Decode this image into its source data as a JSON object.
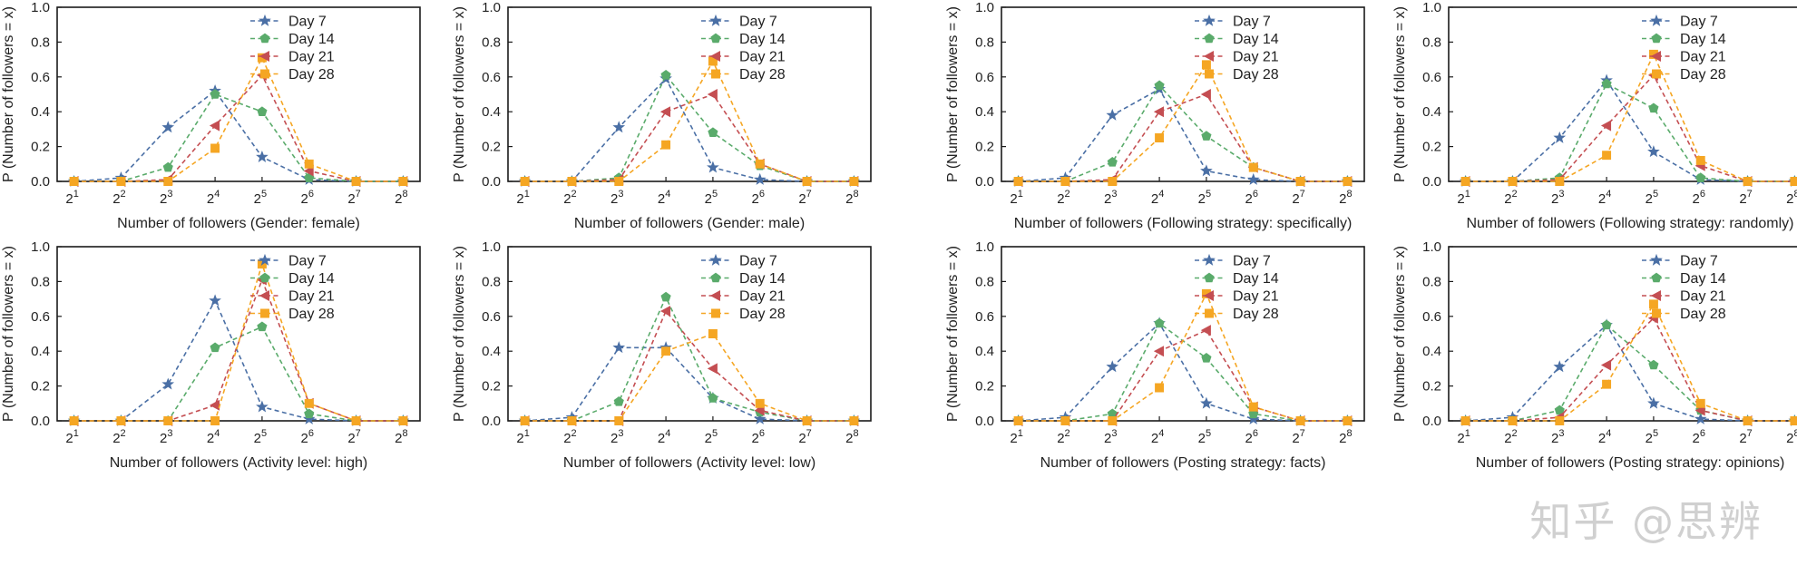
{
  "watermark": "知乎 @思辨",
  "chart_data": [
    {
      "type": "line",
      "x": [
        "2^1",
        "2^2",
        "2^3",
        "2^4",
        "2^5",
        "2^6",
        "2^7",
        "2^8"
      ],
      "xlabel": "Number of followers (Gender: female)",
      "ylabel": "P (Number of followers = x)",
      "ylim": [
        0,
        1.0
      ],
      "yticks": [
        "0.0",
        "0.2",
        "0.4",
        "0.6",
        "0.8",
        "1.0"
      ],
      "legend_position": "top-right",
      "series": [
        {
          "name": "Day 7",
          "color": "#4a6fa5",
          "marker": "star",
          "values": [
            0.0,
            0.02,
            0.31,
            0.52,
            0.14,
            0.01,
            0.0,
            0.0
          ]
        },
        {
          "name": "Day 14",
          "color": "#5aab6b",
          "marker": "pentagon",
          "values": [
            0.0,
            0.0,
            0.08,
            0.5,
            0.4,
            0.02,
            0.0,
            0.0
          ]
        },
        {
          "name": "Day 21",
          "color": "#c44e52",
          "marker": "triangle-left",
          "values": [
            0.0,
            0.0,
            0.01,
            0.32,
            0.61,
            0.06,
            0.0,
            0.0
          ]
        },
        {
          "name": "Day 28",
          "color": "#f5a623",
          "marker": "square",
          "values": [
            0.0,
            0.0,
            0.0,
            0.19,
            0.71,
            0.1,
            0.0,
            0.0
          ]
        }
      ]
    },
    {
      "type": "line",
      "x": [
        "2^1",
        "2^2",
        "2^3",
        "2^4",
        "2^5",
        "2^6",
        "2^7",
        "2^8"
      ],
      "xlabel": "Number of followers (Gender: male)",
      "ylabel": "P (Number of followers = x)",
      "ylim": [
        0,
        1.0
      ],
      "yticks": [
        "0.0",
        "0.2",
        "0.4",
        "0.6",
        "0.8",
        "1.0"
      ],
      "legend_position": "top-right",
      "series": [
        {
          "name": "Day 7",
          "color": "#4a6fa5",
          "marker": "star",
          "values": [
            0.0,
            0.0,
            0.31,
            0.59,
            0.08,
            0.01,
            0.0,
            0.0
          ]
        },
        {
          "name": "Day 14",
          "color": "#5aab6b",
          "marker": "pentagon",
          "values": [
            0.0,
            0.0,
            0.02,
            0.61,
            0.28,
            0.09,
            0.0,
            0.0
          ]
        },
        {
          "name": "Day 21",
          "color": "#c44e52",
          "marker": "triangle-left",
          "values": [
            0.0,
            0.0,
            0.01,
            0.4,
            0.5,
            0.1,
            0.0,
            0.0
          ]
        },
        {
          "name": "Day 28",
          "color": "#f5a623",
          "marker": "square",
          "values": [
            0.0,
            0.0,
            0.0,
            0.21,
            0.69,
            0.1,
            0.0,
            0.0
          ]
        }
      ]
    },
    {
      "type": "line",
      "x": [
        "2^1",
        "2^2",
        "2^3",
        "2^4",
        "2^5",
        "2^6",
        "2^7",
        "2^8"
      ],
      "xlabel": "Number of followers (Following strategy: specifically)",
      "ylabel": "P (Number of followers = x)",
      "ylim": [
        0,
        1.0
      ],
      "yticks": [
        "0.0",
        "0.2",
        "0.4",
        "0.6",
        "0.8",
        "1.0"
      ],
      "legend_position": "top-right",
      "series": [
        {
          "name": "Day 7",
          "color": "#4a6fa5",
          "marker": "star",
          "values": [
            0.0,
            0.02,
            0.38,
            0.53,
            0.06,
            0.01,
            0.0,
            0.0
          ]
        },
        {
          "name": "Day 14",
          "color": "#5aab6b",
          "marker": "pentagon",
          "values": [
            0.0,
            0.0,
            0.11,
            0.55,
            0.26,
            0.08,
            0.0,
            0.0
          ]
        },
        {
          "name": "Day 21",
          "color": "#c44e52",
          "marker": "triangle-left",
          "values": [
            0.0,
            0.0,
            0.01,
            0.4,
            0.5,
            0.08,
            0.0,
            0.0
          ]
        },
        {
          "name": "Day 28",
          "color": "#f5a623",
          "marker": "square",
          "values": [
            0.0,
            0.0,
            0.0,
            0.25,
            0.67,
            0.08,
            0.0,
            0.0
          ]
        }
      ]
    },
    {
      "type": "line",
      "x": [
        "2^1",
        "2^2",
        "2^3",
        "2^4",
        "2^5",
        "2^6",
        "2^7",
        "2^8"
      ],
      "xlabel": "Number of followers (Following strategy: randomly)",
      "ylabel": "P (Number of followers = x)",
      "ylim": [
        0,
        1.0
      ],
      "yticks": [
        "0.0",
        "0.2",
        "0.4",
        "0.6",
        "0.8",
        "1.0"
      ],
      "legend_position": "top-right",
      "series": [
        {
          "name": "Day 7",
          "color": "#4a6fa5",
          "marker": "star",
          "values": [
            0.0,
            0.0,
            0.25,
            0.58,
            0.17,
            0.01,
            0.0,
            0.0
          ]
        },
        {
          "name": "Day 14",
          "color": "#5aab6b",
          "marker": "pentagon",
          "values": [
            0.0,
            0.0,
            0.02,
            0.56,
            0.42,
            0.02,
            0.0,
            0.0
          ]
        },
        {
          "name": "Day 21",
          "color": "#c44e52",
          "marker": "triangle-left",
          "values": [
            0.0,
            0.0,
            0.01,
            0.32,
            0.61,
            0.09,
            0.0,
            0.0
          ]
        },
        {
          "name": "Day 28",
          "color": "#f5a623",
          "marker": "square",
          "values": [
            0.0,
            0.0,
            0.0,
            0.15,
            0.73,
            0.12,
            0.0,
            0.0
          ]
        }
      ]
    },
    {
      "type": "line",
      "x": [
        "2^1",
        "2^2",
        "2^3",
        "2^4",
        "2^5",
        "2^6",
        "2^7",
        "2^8"
      ],
      "xlabel": "Number of followers (Activity level: high)",
      "ylabel": "P (Number of followers = x)",
      "ylim": [
        0,
        1.0
      ],
      "yticks": [
        "0.0",
        "0.2",
        "0.4",
        "0.6",
        "0.8",
        "1.0"
      ],
      "legend_position": "top-right",
      "series": [
        {
          "name": "Day 7",
          "color": "#4a6fa5",
          "marker": "star",
          "values": [
            0.0,
            0.0,
            0.21,
            0.69,
            0.08,
            0.01,
            0.0,
            0.0
          ]
        },
        {
          "name": "Day 14",
          "color": "#5aab6b",
          "marker": "pentagon",
          "values": [
            0.0,
            0.0,
            0.0,
            0.42,
            0.54,
            0.04,
            0.0,
            0.0
          ]
        },
        {
          "name": "Day 21",
          "color": "#c44e52",
          "marker": "triangle-left",
          "values": [
            0.0,
            0.0,
            0.0,
            0.09,
            0.81,
            0.1,
            0.0,
            0.0
          ]
        },
        {
          "name": "Day 28",
          "color": "#f5a623",
          "marker": "square",
          "values": [
            0.0,
            0.0,
            0.0,
            0.0,
            0.9,
            0.1,
            0.0,
            0.0
          ]
        }
      ]
    },
    {
      "type": "line",
      "x": [
        "2^1",
        "2^2",
        "2^3",
        "2^4",
        "2^5",
        "2^6",
        "2^7",
        "2^8"
      ],
      "xlabel": "Number of followers (Activity level: low)",
      "ylabel": "P (Number of followers = x)",
      "ylim": [
        0,
        1.0
      ],
      "yticks": [
        "0.0",
        "0.2",
        "0.4",
        "0.6",
        "0.8",
        "1.0"
      ],
      "legend_position": "top-right",
      "series": [
        {
          "name": "Day 7",
          "color": "#4a6fa5",
          "marker": "star",
          "values": [
            0.0,
            0.02,
            0.42,
            0.42,
            0.13,
            0.01,
            0.0,
            0.0
          ]
        },
        {
          "name": "Day 14",
          "color": "#5aab6b",
          "marker": "pentagon",
          "values": [
            0.0,
            0.0,
            0.11,
            0.71,
            0.13,
            0.05,
            0.0,
            0.0
          ]
        },
        {
          "name": "Day 21",
          "color": "#c44e52",
          "marker": "triangle-left",
          "values": [
            0.0,
            0.0,
            0.0,
            0.63,
            0.3,
            0.06,
            0.0,
            0.0
          ]
        },
        {
          "name": "Day 28",
          "color": "#f5a623",
          "marker": "square",
          "values": [
            0.0,
            0.0,
            0.0,
            0.4,
            0.5,
            0.1,
            0.0,
            0.0
          ]
        }
      ]
    },
    {
      "type": "line",
      "x": [
        "2^1",
        "2^2",
        "2^3",
        "2^4",
        "2^5",
        "2^6",
        "2^7",
        "2^8"
      ],
      "xlabel": "Number of followers (Posting strategy: facts)",
      "ylabel": "P (Number of followers = x)",
      "ylim": [
        0,
        1.0
      ],
      "yticks": [
        "0.0",
        "0.2",
        "0.4",
        "0.6",
        "0.8",
        "1.0"
      ],
      "legend_position": "top-right",
      "series": [
        {
          "name": "Day 7",
          "color": "#4a6fa5",
          "marker": "star",
          "values": [
            0.0,
            0.02,
            0.31,
            0.56,
            0.1,
            0.01,
            0.0,
            0.0
          ]
        },
        {
          "name": "Day 14",
          "color": "#5aab6b",
          "marker": "pentagon",
          "values": [
            0.0,
            0.0,
            0.04,
            0.56,
            0.36,
            0.04,
            0.0,
            0.0
          ]
        },
        {
          "name": "Day 21",
          "color": "#c44e52",
          "marker": "triangle-left",
          "values": [
            0.0,
            0.0,
            0.0,
            0.4,
            0.52,
            0.08,
            0.0,
            0.0
          ]
        },
        {
          "name": "Day 28",
          "color": "#f5a623",
          "marker": "square",
          "values": [
            0.0,
            0.0,
            0.0,
            0.19,
            0.73,
            0.08,
            0.0,
            0.0
          ]
        }
      ]
    },
    {
      "type": "line",
      "x": [
        "2^1",
        "2^2",
        "2^3",
        "2^4",
        "2^5",
        "2^6",
        "2^7",
        "2^8"
      ],
      "xlabel": "Number of followers (Posting strategy: opinions)",
      "ylabel": "P (Number of followers = x)",
      "ylim": [
        0,
        1.0
      ],
      "yticks": [
        "0.0",
        "0.2",
        "0.4",
        "0.6",
        "0.8",
        "1.0"
      ],
      "legend_position": "top-right",
      "series": [
        {
          "name": "Day 7",
          "color": "#4a6fa5",
          "marker": "star",
          "values": [
            0.0,
            0.02,
            0.31,
            0.55,
            0.1,
            0.01,
            0.0,
            0.0
          ]
        },
        {
          "name": "Day 14",
          "color": "#5aab6b",
          "marker": "pentagon",
          "values": [
            0.0,
            0.0,
            0.06,
            0.55,
            0.32,
            0.06,
            0.0,
            0.0
          ]
        },
        {
          "name": "Day 21",
          "color": "#c44e52",
          "marker": "triangle-left",
          "values": [
            0.0,
            0.0,
            0.02,
            0.32,
            0.59,
            0.06,
            0.0,
            0.0
          ]
        },
        {
          "name": "Day 28",
          "color": "#f5a623",
          "marker": "square",
          "values": [
            0.0,
            0.0,
            0.0,
            0.21,
            0.67,
            0.1,
            0.0,
            0.0
          ]
        }
      ]
    }
  ]
}
